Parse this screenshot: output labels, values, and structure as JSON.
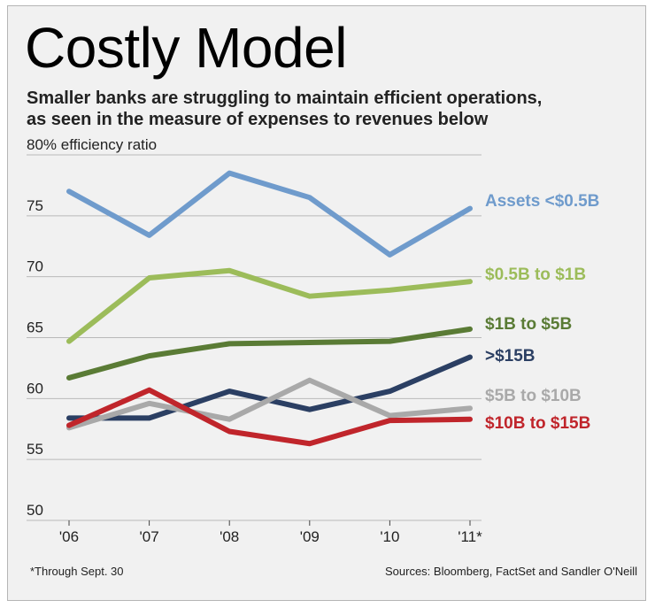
{
  "title": "Costly Model",
  "subtitle": [
    "Smaller banks are struggling to maintain efficient operations,",
    "as seen in the measure of expenses to revenues below"
  ],
  "footnote": "*Through Sept. 30",
  "sources": "Sources: Bloomberg, FactSet and Sandler O'Neill",
  "chart_data": {
    "type": "line",
    "title": "Costly Model",
    "ylabel": "80% efficiency ratio",
    "xlabel": "",
    "ylim": [
      50,
      80
    ],
    "yticks": [
      50,
      55,
      60,
      65,
      70,
      75,
      80
    ],
    "ytick_labels": [
      "50",
      "55",
      "60",
      "65",
      "70",
      "75",
      "80% efficiency ratio"
    ],
    "categories": [
      "'06",
      "'07",
      "'08",
      "'09",
      "'10",
      "'11*"
    ],
    "grid": true,
    "series": [
      {
        "name": "Assets <$0.5B",
        "color": "#6f9bcc",
        "values": [
          77.0,
          73.4,
          78.5,
          76.5,
          71.8,
          75.6
        ]
      },
      {
        "name": "$0.5B to $1B",
        "color": "#9cbc5a",
        "values": [
          64.7,
          69.9,
          70.5,
          68.4,
          68.9,
          69.6
        ]
      },
      {
        "name": "$1B to $5B",
        "color": "#5a7b35",
        "values": [
          61.7,
          63.5,
          64.5,
          64.6,
          64.7,
          65.7
        ]
      },
      {
        "name": ">$15B",
        "color": "#2b3f63",
        "values": [
          58.4,
          58.4,
          60.6,
          59.1,
          60.6,
          63.4
        ]
      },
      {
        "name": "$5B to $10B",
        "color": "#a9a9a9",
        "values": [
          57.6,
          59.6,
          58.3,
          61.5,
          58.6,
          59.2
        ]
      },
      {
        "name": "$10B to $15B",
        "color": "#c0252b",
        "values": [
          57.8,
          60.7,
          57.3,
          56.3,
          58.2,
          58.3
        ]
      }
    ]
  }
}
